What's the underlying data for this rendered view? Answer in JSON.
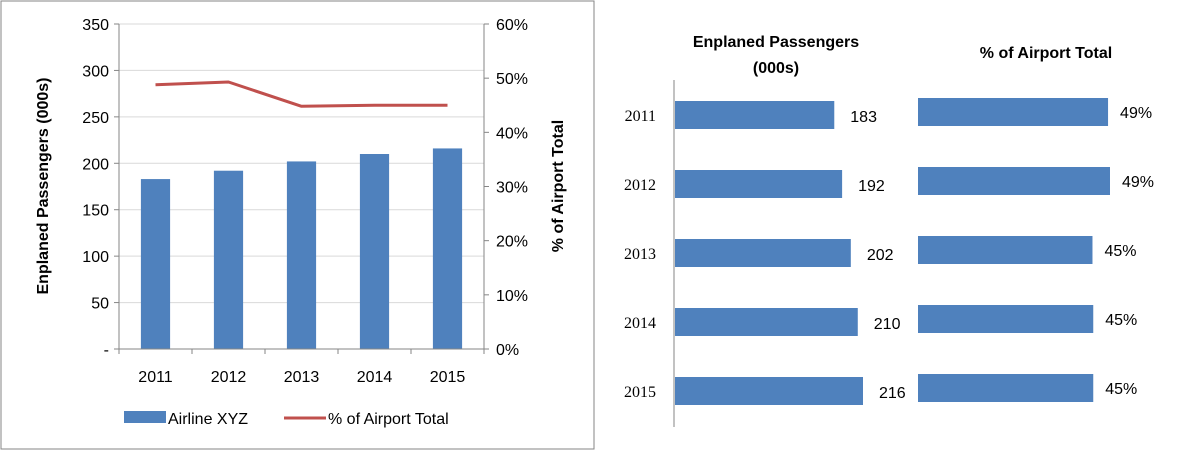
{
  "chart_data": [
    {
      "type": "bar+line",
      "categories": [
        "2011",
        "2012",
        "2013",
        "2014",
        "2015"
      ],
      "series": [
        {
          "name": "Airline XYZ",
          "type": "bar",
          "axis": "left",
          "values": [
            183,
            192,
            202,
            210,
            216
          ]
        },
        {
          "name": "% of Airport Total",
          "type": "line",
          "axis": "right",
          "values": [
            0.488,
            0.493,
            0.448,
            0.45,
            0.45
          ]
        }
      ],
      "ylabel": "Enplaned Passengers (000s)",
      "y2label": "% of Airport Total",
      "ylim": [
        0,
        350
      ],
      "y2lim": [
        0,
        0.6
      ],
      "yticks": [
        "-",
        "50",
        "100",
        "150",
        "200",
        "250",
        "300",
        "350"
      ],
      "y2ticks": [
        "0%",
        "10%",
        "20%",
        "30%",
        "40%",
        "50%",
        "60%"
      ],
      "legend": "bottom",
      "grid": true,
      "colors": {
        "bar": "#4f81bd",
        "line": "#c0504d",
        "grid": "#d9d9d9",
        "axis": "#868686"
      }
    },
    {
      "type": "bar",
      "orientation": "horizontal",
      "title": "Enplaned Passengers (000s)",
      "categories": [
        "2011",
        "2012",
        "2013",
        "2014",
        "2015"
      ],
      "values": [
        183,
        192,
        202,
        210,
        216
      ],
      "value_labels": [
        "183",
        "192",
        "202",
        "210",
        "216"
      ],
      "color": "#4f81bd"
    },
    {
      "type": "bar",
      "orientation": "horizontal",
      "title": "% of Airport Total",
      "categories": [
        "2011",
        "2012",
        "2013",
        "2014",
        "2015"
      ],
      "values": [
        0.488,
        0.493,
        0.448,
        0.45,
        0.45
      ],
      "value_labels": [
        "49%",
        "49%",
        "45%",
        "45%",
        "45%"
      ],
      "color": "#4f81bd"
    }
  ]
}
